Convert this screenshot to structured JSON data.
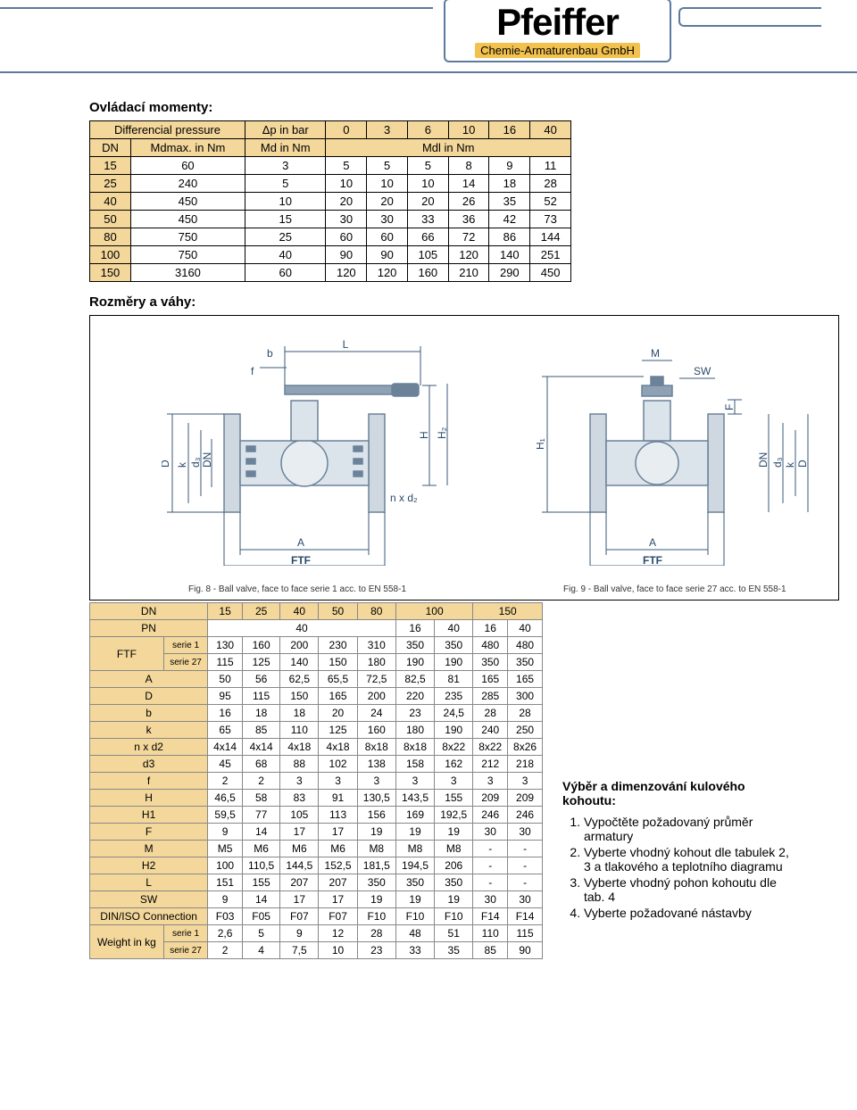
{
  "logo": {
    "main": "Pfeiffer",
    "sub": "Chemie-Armaturenbau GmbH"
  },
  "section_torque_title": "Ovládací momenty:",
  "section_dims_title": "Rozměry a váhy:",
  "torque_table": {
    "header_diffpress": "Differencial pressure",
    "header_dp": "Δp in bar",
    "dp_values": [
      "0",
      "3",
      "6",
      "10",
      "16",
      "40"
    ],
    "row2_dn": "DN",
    "row2_mdmax": "Mdmax. in Nm",
    "row2_md": "Md in Nm",
    "row2_mdl": "Mdl in Nm",
    "rows": [
      [
        "15",
        "60",
        "3",
        "5",
        "5",
        "5",
        "8",
        "9",
        "11"
      ],
      [
        "25",
        "240",
        "5",
        "10",
        "10",
        "10",
        "14",
        "18",
        "28"
      ],
      [
        "40",
        "450",
        "10",
        "20",
        "20",
        "20",
        "26",
        "35",
        "52"
      ],
      [
        "50",
        "450",
        "15",
        "30",
        "30",
        "33",
        "36",
        "42",
        "73"
      ],
      [
        "80",
        "750",
        "25",
        "60",
        "60",
        "66",
        "72",
        "86",
        "144"
      ],
      [
        "100",
        "750",
        "40",
        "90",
        "90",
        "105",
        "120",
        "140",
        "251"
      ],
      [
        "150",
        "3160",
        "60",
        "120",
        "120",
        "160",
        "210",
        "290",
        "450"
      ]
    ]
  },
  "diagram": {
    "caption_left": "Fig. 8 - Ball valve, face to face serie 1 acc. to EN 558-1",
    "caption_right": "Fig. 9 - Ball valve, face to face serie 27 acc. to EN 558-1",
    "label_L": "L",
    "label_b": "b",
    "label_f": "f",
    "label_D": "D",
    "label_k": "k",
    "label_d3": "d₃",
    "label_DN": "DN",
    "label_H": "H",
    "label_H2": "H₂",
    "label_nxd2": "n x d₂",
    "label_A": "A",
    "label_FTF": "FTF",
    "label_M": "M",
    "label_SW": "SW",
    "label_H1": "H₁",
    "label_F": "F"
  },
  "dims_table": {
    "dn_header": "DN",
    "dn_values": [
      "15",
      "25",
      "40",
      "50",
      "80",
      "100",
      "100",
      "150",
      "150"
    ],
    "pn_header": "PN",
    "pn_row": [
      "40",
      "40",
      "40",
      "40",
      "40",
      "16",
      "40",
      "16",
      "40"
    ],
    "rows_labels": [
      "FTF",
      "A",
      "D",
      "b",
      "k",
      "n x d2",
      "d3",
      "f",
      "H",
      "H1",
      "F",
      "M",
      "H2",
      "L",
      "SW",
      "DIN/ISO Connection",
      "Weight in kg"
    ],
    "ftf_serie1": [
      "130",
      "160",
      "200",
      "230",
      "310",
      "350",
      "350",
      "480",
      "480"
    ],
    "ftf_serie27": [
      "115",
      "125",
      "140",
      "150",
      "180",
      "190",
      "190",
      "350",
      "350"
    ],
    "A": [
      "50",
      "56",
      "62,5",
      "65,5",
      "72,5",
      "82,5",
      "81",
      "165",
      "165"
    ],
    "D": [
      "95",
      "115",
      "150",
      "165",
      "200",
      "220",
      "235",
      "285",
      "300"
    ],
    "b": [
      "16",
      "18",
      "18",
      "20",
      "24",
      "23",
      "24,5",
      "28",
      "28"
    ],
    "k": [
      "65",
      "85",
      "110",
      "125",
      "160",
      "180",
      "190",
      "240",
      "250"
    ],
    "nxd2": [
      "4x14",
      "4x14",
      "4x18",
      "4x18",
      "8x18",
      "8x18",
      "8x22",
      "8x22",
      "8x26"
    ],
    "d3": [
      "45",
      "68",
      "88",
      "102",
      "138",
      "158",
      "162",
      "212",
      "218"
    ],
    "f": [
      "2",
      "2",
      "3",
      "3",
      "3",
      "3",
      "3",
      "3",
      "3"
    ],
    "H": [
      "46,5",
      "58",
      "83",
      "91",
      "130,5",
      "143,5",
      "155",
      "209",
      "209"
    ],
    "H1": [
      "59,5",
      "77",
      "105",
      "113",
      "156",
      "169",
      "192,5",
      "246",
      "246"
    ],
    "F": [
      "9",
      "14",
      "17",
      "17",
      "19",
      "19",
      "19",
      "30",
      "30"
    ],
    "M": [
      "M5",
      "M6",
      "M6",
      "M6",
      "M8",
      "M8",
      "M8",
      "-",
      "-"
    ],
    "H2": [
      "100",
      "110,5",
      "144,5",
      "152,5",
      "181,5",
      "194,5",
      "206",
      "-",
      "-"
    ],
    "L": [
      "151",
      "155",
      "207",
      "207",
      "350",
      "350",
      "350",
      "-",
      "-"
    ],
    "SW": [
      "9",
      "14",
      "17",
      "17",
      "19",
      "19",
      "19",
      "30",
      "30"
    ],
    "DINISO": [
      "F03",
      "F05",
      "F07",
      "F07",
      "F10",
      "F10",
      "F10",
      "F14",
      "F14"
    ],
    "W_serie1": [
      "2,6",
      "5",
      "9",
      "12",
      "28",
      "48",
      "51",
      "110",
      "115"
    ],
    "W_serie27": [
      "2",
      "4",
      "7,5",
      "10",
      "23",
      "33",
      "35",
      "85",
      "90"
    ],
    "sub_serie1": "serie 1",
    "sub_serie27": "serie 27"
  },
  "selection": {
    "title": "Výběr a dimenzování kulového kohoutu:",
    "items": [
      "Vypočtěte požadovaný průměr armatury",
      "Vyberte vhodný kohout dle tabulek 2, 3 a tlakového a teplotního diagramu",
      "Vyberte vhodný pohon kohoutu dle tab. 4",
      "Vyberte požadované nástavby"
    ]
  },
  "colors": {
    "hdr_bg": "#f3d79b",
    "rule": "#5b7a9f",
    "logo_sub_bg": "#f2c14e"
  }
}
